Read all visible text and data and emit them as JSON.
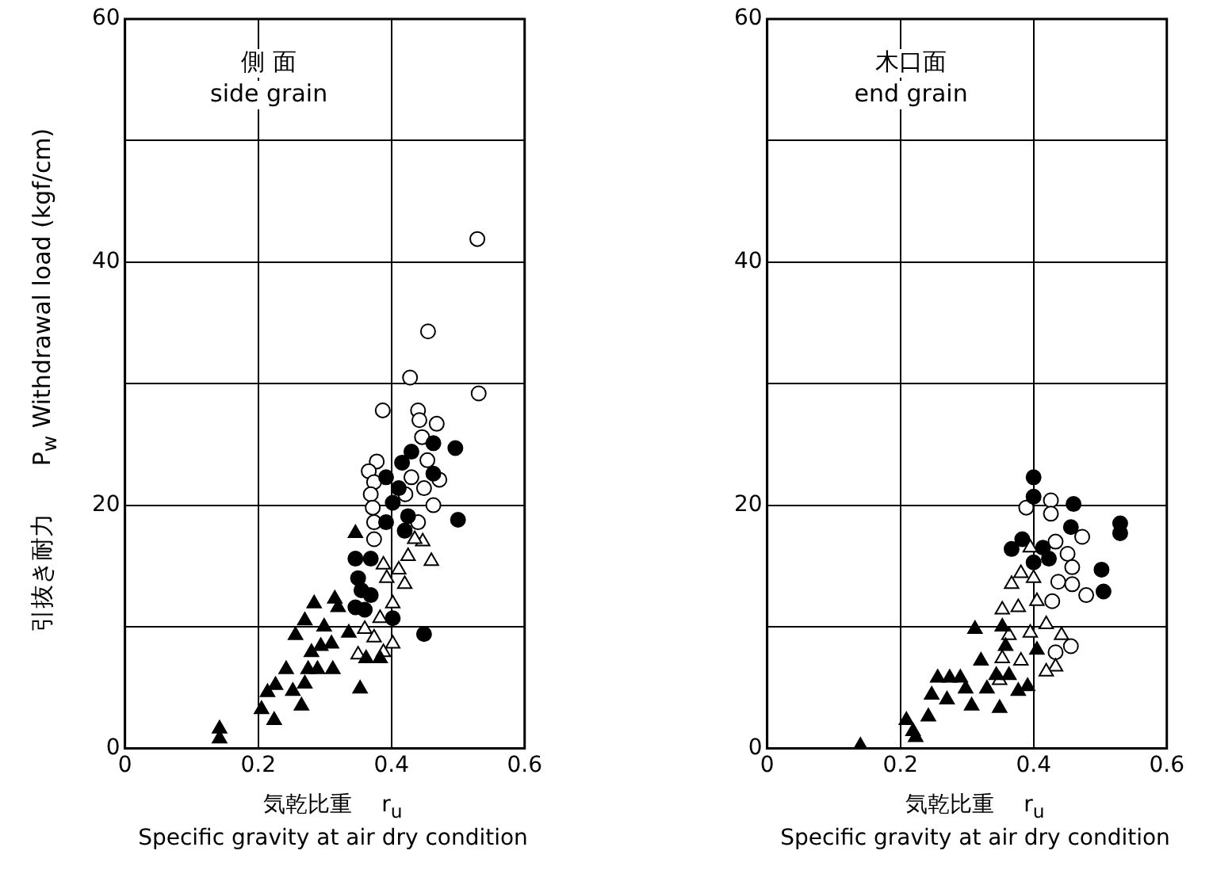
{
  "chart_data": [
    {
      "type": "scatter",
      "title": "側 面\nside grain",
      "xlabel": "気乾比重　 r$_{u}$\nSpecific gravity at air dry condition",
      "ylabel": "引抜き耐力　　P$_{w}$ Withdrawal load (kgf/cm)",
      "xlim": [
        0,
        0.6
      ],
      "ylim": [
        0,
        60
      ],
      "xticks": [
        0,
        0.2,
        0.4,
        0.6
      ],
      "yticks": [
        0,
        {
          "value": 10,
          "label": null
        },
        20,
        {
          "value": 30,
          "label": null
        },
        40,
        {
          "value": 50,
          "label": null
        },
        60
      ],
      "grid": true,
      "legend": false,
      "series": [
        {
          "marker": "triangle",
          "color": "#000000",
          "x": [
            0.142,
            0.142,
            0.205,
            0.224,
            0.214,
            0.226,
            0.242,
            0.252,
            0.265,
            0.27,
            0.275,
            0.289,
            0.312,
            0.256,
            0.27,
            0.284,
            0.299,
            0.31,
            0.294,
            0.315,
            0.32,
            0.353,
            0.346,
            0.336,
            0.362,
            0.383,
            0.28
          ],
          "values": [
            1.6,
            0.8,
            3.2,
            2.3,
            4.6,
            5.2,
            6.5,
            4.7,
            3.5,
            5.3,
            6.5,
            6.5,
            6.5,
            9.3,
            10.5,
            11.9,
            10,
            8.6,
            8.4,
            12.3,
            11.6,
            4.9,
            17.7,
            9.5,
            7.4,
            7.4,
            7.9
          ]
        },
        {
          "marker": "triangle",
          "color": "#ffffff",
          "x": [
            0.447,
            0.425,
            0.46,
            0.393,
            0.411,
            0.42,
            0.388,
            0.402,
            0.383,
            0.36,
            0.374,
            0.402,
            0.35,
            0.388,
            0.435
          ],
          "values": [
            17,
            15.8,
            15.4,
            14,
            14.7,
            13.5,
            15.1,
            11.9,
            10.7,
            9.8,
            9.1,
            8.6,
            7.7,
            7.9,
            17.2
          ]
        },
        {
          "marker": "circle",
          "color": "#000000",
          "x": [
            0.496,
            0.5,
            0.449,
            0.463,
            0.43,
            0.416,
            0.392,
            0.411,
            0.402,
            0.425,
            0.392,
            0.42,
            0.346,
            0.369,
            0.35,
            0.355,
            0.369,
            0.346,
            0.36,
            0.402,
            0.463
          ],
          "values": [
            24.7,
            18.8,
            9.4,
            25.1,
            24.4,
            23.5,
            22.3,
            21.4,
            20.2,
            19.1,
            18.6,
            17.9,
            15.6,
            15.6,
            14,
            13,
            12.6,
            11.6,
            11.4,
            10.7,
            22.6
          ]
        },
        {
          "marker": "circle",
          "color": "#ffffff",
          "x": [
            0.529,
            0.455,
            0.428,
            0.531,
            0.387,
            0.44,
            0.468,
            0.442,
            0.446,
            0.378,
            0.366,
            0.374,
            0.369,
            0.372,
            0.374,
            0.374,
            0.43,
            0.449,
            0.472,
            0.463,
            0.44,
            0.421,
            0.454
          ],
          "values": [
            41.9,
            34.3,
            30.5,
            29.2,
            27.8,
            27.8,
            26.7,
            27,
            25.6,
            23.6,
            22.8,
            21.9,
            20.9,
            19.8,
            18.6,
            17.2,
            22.3,
            21.4,
            22.1,
            20,
            18.6,
            20.9,
            23.7
          ]
        }
      ]
    },
    {
      "type": "scatter",
      "title": "木口面\nend grain",
      "xlabel": "気乾比重　 r$_{u}$\nSpecific gravity at air dry condition",
      "xlim": [
        0,
        0.6
      ],
      "ylim": [
        0,
        60
      ],
      "xticks": [
        0,
        0.2,
        0.4,
        0.6
      ],
      "yticks": [
        0,
        {
          "value": 10,
          "label": null
        },
        20,
        {
          "value": 30,
          "label": null
        },
        40,
        {
          "value": 50,
          "label": null
        },
        60
      ],
      "grid": true,
      "legend": false,
      "series": [
        {
          "marker": "triangle",
          "color": "#000000",
          "x": [
            0.14,
            0.209,
            0.223,
            0.219,
            0.242,
            0.247,
            0.256,
            0.27,
            0.274,
            0.29,
            0.298,
            0.312,
            0.307,
            0.321,
            0.33,
            0.349,
            0.353,
            0.358,
            0.363,
            0.377,
            0.391,
            0.405,
            0.344
          ],
          "values": [
            0.2,
            2.3,
            0.9,
            1.4,
            2.6,
            4.4,
            5.8,
            4,
            5.8,
            5.8,
            4.9,
            9.8,
            3.5,
            7.2,
            4.9,
            3.3,
            10,
            8.4,
            6,
            4.7,
            5.1,
            8.1,
            6
          ]
        },
        {
          "marker": "triangle",
          "color": "#ffffff",
          "x": [
            0.367,
            0.381,
            0.353,
            0.377,
            0.4,
            0.405,
            0.419,
            0.395,
            0.363,
            0.353,
            0.381,
            0.433,
            0.419,
            0.349,
            0.395,
            0.442
          ],
          "values": [
            13.5,
            14.4,
            11.4,
            11.6,
            14,
            12.1,
            10.2,
            9.5,
            9.3,
            7.4,
            7.2,
            6.7,
            6.3,
            5.6,
            16.5,
            9.3
          ]
        },
        {
          "marker": "circle",
          "color": "#000000",
          "x": [
            0.4,
            0.4,
            0.46,
            0.456,
            0.53,
            0.53,
            0.502,
            0.505,
            0.367,
            0.383,
            0.414,
            0.4,
            0.423
          ],
          "values": [
            22.3,
            20.7,
            20.1,
            18.2,
            18.5,
            17.7,
            14.7,
            12.9,
            16.4,
            17.2,
            16.5,
            15.3,
            15.6
          ]
        },
        {
          "marker": "circle",
          "color": "#ffffff",
          "x": [
            0.389,
            0.426,
            0.426,
            0.473,
            0.433,
            0.451,
            0.458,
            0.437,
            0.458,
            0.479,
            0.428,
            0.456,
            0.433
          ],
          "values": [
            19.8,
            20.4,
            19.3,
            17.4,
            17,
            16,
            14.9,
            13.7,
            13.5,
            12.6,
            12.1,
            8.4,
            7.9
          ]
        }
      ]
    }
  ]
}
